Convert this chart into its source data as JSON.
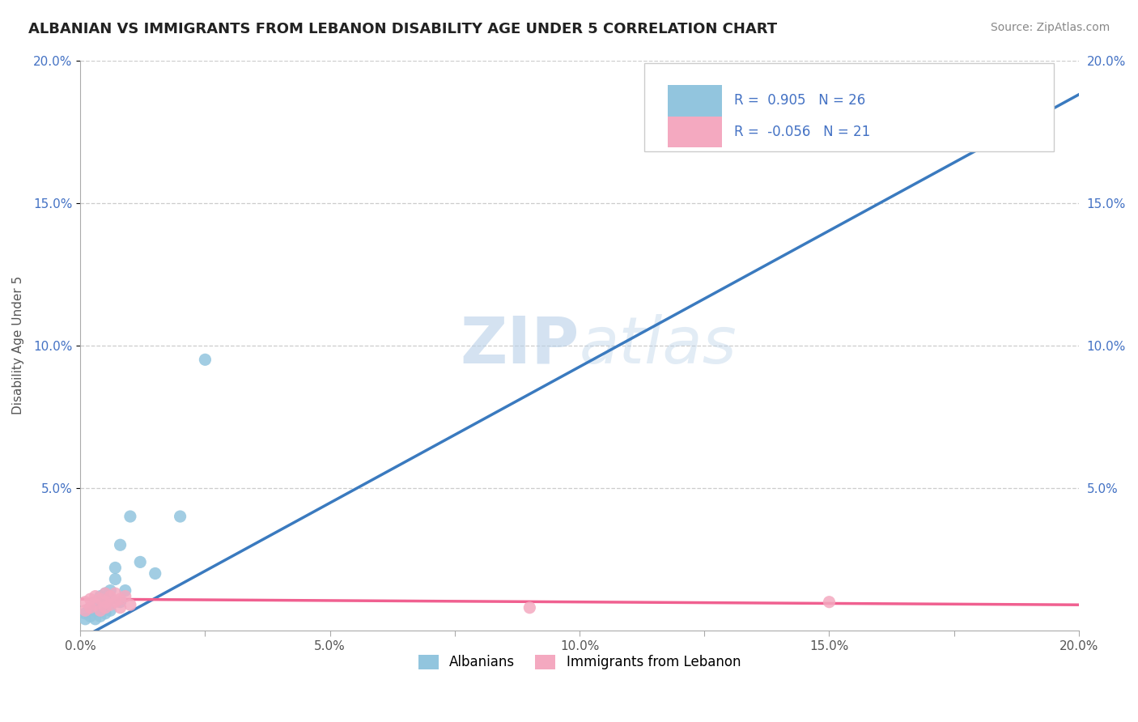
{
  "title": "ALBANIAN VS IMMIGRANTS FROM LEBANON DISABILITY AGE UNDER 5 CORRELATION CHART",
  "source": "Source: ZipAtlas.com",
  "ylabel": "Disability Age Under 5",
  "xlim": [
    0.0,
    0.2
  ],
  "ylim": [
    0.0,
    0.2
  ],
  "xtick_labels": [
    "0.0%",
    "",
    "5.0%",
    "",
    "10.0%",
    "",
    "15.0%",
    "",
    "20.0%"
  ],
  "xtick_vals": [
    0.0,
    0.025,
    0.05,
    0.075,
    0.1,
    0.125,
    0.15,
    0.175,
    0.2
  ],
  "ytick_labels": [
    "5.0%",
    "10.0%",
    "15.0%",
    "20.0%"
  ],
  "ytick_vals": [
    0.05,
    0.1,
    0.15,
    0.2
  ],
  "legend_label1": "Albanians",
  "legend_label2": "Immigrants from Lebanon",
  "R1": "0.905",
  "N1": "26",
  "R2": "-0.056",
  "N2": "21",
  "color1": "#92c5de",
  "color2": "#f4a9c0",
  "trendline1_color": "#3a7abf",
  "trendline2_color": "#f06090",
  "text_color_blue": "#4472c4",
  "background_color": "#ffffff",
  "grid_color": "#cccccc",
  "watermark_color": "#cce0f0",
  "albanians_x": [
    0.001,
    0.001,
    0.002,
    0.002,
    0.003,
    0.003,
    0.003,
    0.004,
    0.004,
    0.004,
    0.005,
    0.005,
    0.005,
    0.006,
    0.006,
    0.006,
    0.007,
    0.007,
    0.008,
    0.008,
    0.009,
    0.01,
    0.012,
    0.015,
    0.02,
    0.025
  ],
  "albanians_y": [
    0.004,
    0.006,
    0.005,
    0.008,
    0.004,
    0.007,
    0.01,
    0.005,
    0.009,
    0.012,
    0.006,
    0.01,
    0.013,
    0.007,
    0.011,
    0.014,
    0.018,
    0.022,
    0.01,
    0.03,
    0.014,
    0.04,
    0.024,
    0.02,
    0.04,
    0.095
  ],
  "lebanon_x": [
    0.001,
    0.001,
    0.002,
    0.002,
    0.003,
    0.003,
    0.004,
    0.004,
    0.005,
    0.005,
    0.005,
    0.006,
    0.006,
    0.007,
    0.007,
    0.008,
    0.008,
    0.009,
    0.01,
    0.09,
    0.15
  ],
  "lebanon_y": [
    0.007,
    0.01,
    0.008,
    0.011,
    0.009,
    0.012,
    0.007,
    0.011,
    0.008,
    0.01,
    0.013,
    0.009,
    0.012,
    0.01,
    0.013,
    0.008,
    0.011,
    0.012,
    0.009,
    0.008,
    0.01
  ],
  "trendline1_x0": 0.0,
  "trendline1_y0": -0.003,
  "trendline1_x1": 0.2,
  "trendline1_y1": 0.188,
  "trendline2_x0": 0.0,
  "trendline2_y0": 0.011,
  "trendline2_x1": 0.2,
  "trendline2_y1": 0.009
}
